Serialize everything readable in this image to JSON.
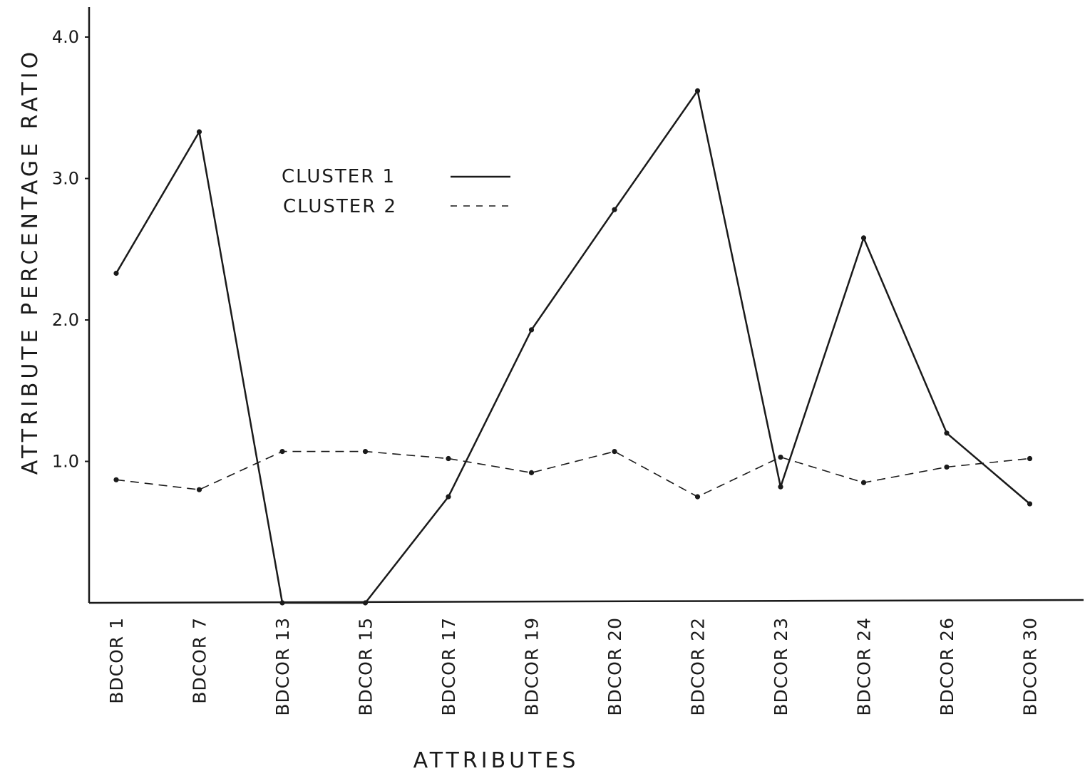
{
  "chart_data": {
    "type": "line",
    "title": "",
    "xlabel": "ATTRIBUTES",
    "ylabel": "ATTRIBUTE PERCENTAGE RATIO",
    "categories": [
      "BDCOR 1",
      "BDCOR 7",
      "BDCOR 13",
      "BDCOR 15",
      "BDCOR 17",
      "BDCOR 19",
      "BDCOR 20",
      "BDCOR 22",
      "BDCOR 23",
      "BDCOR 24",
      "BDCOR 26",
      "BDCOR 30"
    ],
    "yticks": [
      {
        "value": 1.0,
        "label": "1.0"
      },
      {
        "value": 2.0,
        "label": "2.0"
      },
      {
        "value": 3.0,
        "label": "3.0"
      },
      {
        "value": 4.0,
        "label": "4.0"
      }
    ],
    "ylim": [
      0,
      4.25
    ],
    "grid": false,
    "legend_position": "top-center",
    "series": [
      {
        "name": "CLUSTER 1",
        "style": "solid",
        "color": "#1a1a1a",
        "values": [
          2.33,
          3.33,
          0.0,
          0.0,
          0.75,
          1.93,
          2.78,
          3.62,
          0.82,
          2.58,
          1.2,
          0.7
        ]
      },
      {
        "name": "CLUSTER 2",
        "style": "dashed",
        "color": "#1a1a1a",
        "values": [
          0.87,
          0.8,
          1.07,
          1.07,
          1.02,
          0.92,
          1.07,
          0.75,
          1.03,
          0.85,
          0.96,
          1.02
        ]
      }
    ]
  }
}
